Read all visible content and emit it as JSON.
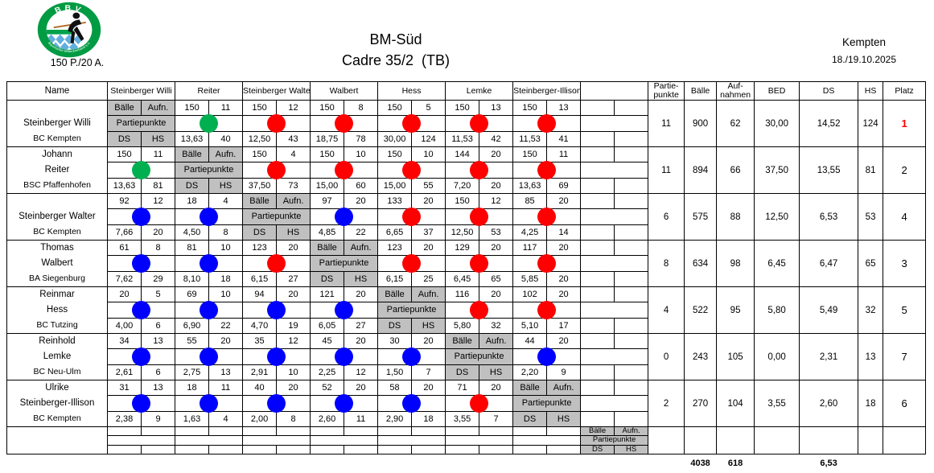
{
  "header": {
    "logo_text_top": "BBV",
    "logo_text_bottom": "Bayerischer Billardverband e.V.",
    "match_format": "150 P./20 A.",
    "title": "BM-Süd",
    "subtitle": "Cadre 35/2  (TB)",
    "location": "Kempten",
    "date": "18./19.10.2025"
  },
  "colors": {
    "dots": {
      "win": "#ff0000",
      "loss": "#0000ff",
      "draw": "#00b050"
    },
    "platz_first": "#ff0000",
    "diagonal_gray": "#c0c0c0",
    "logo_green": "#009b42",
    "logo_blue": "#62aede"
  },
  "table": {
    "name_header": "Name",
    "opponent_headers": [
      "Steinberger Willi",
      "Reiter",
      "Steinberger Walter",
      "Walbert",
      "Hess",
      "Lemke",
      "Steinberger-Illison",
      ""
    ],
    "summary_headers": [
      "Partie-\npunkte",
      "Bälle",
      "Auf-\nnahmen",
      "BED",
      "DS",
      "HS",
      "Platz"
    ],
    "diagonal_labels": {
      "balls": "Bälle",
      "innings": "Aufn.",
      "match_points": "Partiepunkte",
      "ds": "DS",
      "hs": "HS"
    },
    "players": [
      {
        "name_lines": [
          "",
          "Steinberger Willi",
          "BC Kempten"
        ],
        "diagonal": 0,
        "results": [
          null,
          {
            "balls": "150",
            "innings": "11",
            "result": "draw",
            "ds": "13,63",
            "hs": "40"
          },
          {
            "balls": "150",
            "innings": "12",
            "result": "win",
            "ds": "12,50",
            "hs": "43"
          },
          {
            "balls": "150",
            "innings": "8",
            "result": "win",
            "ds": "18,75",
            "hs": "78"
          },
          {
            "balls": "150",
            "innings": "5",
            "result": "win",
            "ds": "30,00",
            "hs": "124"
          },
          {
            "balls": "150",
            "innings": "13",
            "result": "win",
            "ds": "11,53",
            "hs": "42"
          },
          {
            "balls": "150",
            "innings": "13",
            "result": "win",
            "ds": "11,53",
            "hs": "41"
          },
          null
        ],
        "summary": {
          "partiepunkte": "11",
          "baelle": "900",
          "aufnahmen": "62",
          "bed": "30,00",
          "ds": "14,52",
          "hs": "124",
          "platz": "1",
          "platz_red": true
        }
      },
      {
        "name_lines": [
          "Johann",
          "Reiter",
          "BSC Pfaffenhofen"
        ],
        "diagonal": 1,
        "results": [
          {
            "balls": "150",
            "innings": "11",
            "result": "draw",
            "ds": "13,63",
            "hs": "81"
          },
          null,
          {
            "balls": "150",
            "innings": "4",
            "result": "win",
            "ds": "37,50",
            "hs": "73"
          },
          {
            "balls": "150",
            "innings": "10",
            "result": "win",
            "ds": "15,00",
            "hs": "60"
          },
          {
            "balls": "150",
            "innings": "10",
            "result": "win",
            "ds": "15,00",
            "hs": "55"
          },
          {
            "balls": "144",
            "innings": "20",
            "result": "win",
            "ds": "7,20",
            "hs": "20"
          },
          {
            "balls": "150",
            "innings": "11",
            "result": "win",
            "ds": "13,63",
            "hs": "69"
          },
          null
        ],
        "summary": {
          "partiepunkte": "11",
          "baelle": "894",
          "aufnahmen": "66",
          "bed": "37,50",
          "ds": "13,55",
          "hs": "81",
          "platz": "2",
          "platz_red": false
        }
      },
      {
        "name_lines": [
          "",
          "Steinberger Walter",
          "BC Kempten"
        ],
        "diagonal": 2,
        "results": [
          {
            "balls": "92",
            "innings": "12",
            "result": "loss",
            "ds": "7,66",
            "hs": "20"
          },
          {
            "balls": "18",
            "innings": "4",
            "result": "loss",
            "ds": "4,50",
            "hs": "8"
          },
          null,
          {
            "balls": "97",
            "innings": "20",
            "result": "loss",
            "ds": "4,85",
            "hs": "22"
          },
          {
            "balls": "133",
            "innings": "20",
            "result": "win",
            "ds": "6,65",
            "hs": "37"
          },
          {
            "balls": "150",
            "innings": "12",
            "result": "win",
            "ds": "12,50",
            "hs": "53"
          },
          {
            "balls": "85",
            "innings": "20",
            "result": "win",
            "ds": "4,25",
            "hs": "14"
          },
          null
        ],
        "summary": {
          "partiepunkte": "6",
          "baelle": "575",
          "aufnahmen": "88",
          "bed": "12,50",
          "ds": "6,53",
          "hs": "53",
          "platz": "4",
          "platz_red": false
        }
      },
      {
        "name_lines": [
          "Thomas",
          "Walbert",
          "BA Siegenburg"
        ],
        "diagonal": 3,
        "results": [
          {
            "balls": "61",
            "innings": "8",
            "result": "loss",
            "ds": "7,62",
            "hs": "29"
          },
          {
            "balls": "81",
            "innings": "10",
            "result": "loss",
            "ds": "8,10",
            "hs": "18"
          },
          {
            "balls": "123",
            "innings": "20",
            "result": "win",
            "ds": "6,15",
            "hs": "27"
          },
          null,
          {
            "balls": "123",
            "innings": "20",
            "result": "win",
            "ds": "6,15",
            "hs": "25"
          },
          {
            "balls": "129",
            "innings": "20",
            "result": "win",
            "ds": "6,45",
            "hs": "65"
          },
          {
            "balls": "117",
            "innings": "20",
            "result": "win",
            "ds": "5,85",
            "hs": "20"
          },
          null
        ],
        "summary": {
          "partiepunkte": "8",
          "baelle": "634",
          "aufnahmen": "98",
          "bed": "6,45",
          "ds": "6,47",
          "hs": "65",
          "platz": "3",
          "platz_red": false
        }
      },
      {
        "name_lines": [
          "Reinmar",
          "Hess",
          "BC Tutzing"
        ],
        "diagonal": 4,
        "results": [
          {
            "balls": "20",
            "innings": "5",
            "result": "loss",
            "ds": "4,00",
            "hs": "6"
          },
          {
            "balls": "69",
            "innings": "10",
            "result": "loss",
            "ds": "6,90",
            "hs": "22"
          },
          {
            "balls": "94",
            "innings": "20",
            "result": "loss",
            "ds": "4,70",
            "hs": "19"
          },
          {
            "balls": "121",
            "innings": "20",
            "result": "loss",
            "ds": "6,05",
            "hs": "27"
          },
          null,
          {
            "balls": "116",
            "innings": "20",
            "result": "win",
            "ds": "5,80",
            "hs": "32"
          },
          {
            "balls": "102",
            "innings": "20",
            "result": "win",
            "ds": "5,10",
            "hs": "17"
          },
          null
        ],
        "summary": {
          "partiepunkte": "4",
          "baelle": "522",
          "aufnahmen": "95",
          "bed": "5,80",
          "ds": "5,49",
          "hs": "32",
          "platz": "5",
          "platz_red": false
        }
      },
      {
        "name_lines": [
          "Reinhold",
          "Lemke",
          "BC Neu-Ulm"
        ],
        "diagonal": 5,
        "results": [
          {
            "balls": "34",
            "innings": "13",
            "result": "loss",
            "ds": "2,61",
            "hs": "6"
          },
          {
            "balls": "55",
            "innings": "20",
            "result": "loss",
            "ds": "2,75",
            "hs": "13"
          },
          {
            "balls": "35",
            "innings": "12",
            "result": "loss",
            "ds": "2,91",
            "hs": "10"
          },
          {
            "balls": "45",
            "innings": "20",
            "result": "loss",
            "ds": "2,25",
            "hs": "12"
          },
          {
            "balls": "30",
            "innings": "20",
            "result": "loss",
            "ds": "1,50",
            "hs": "7"
          },
          null,
          {
            "balls": "44",
            "innings": "20",
            "result": "loss",
            "ds": "2,20",
            "hs": "9"
          },
          null
        ],
        "summary": {
          "partiepunkte": "0",
          "baelle": "243",
          "aufnahmen": "105",
          "bed": "0,00",
          "ds": "2,31",
          "hs": "13",
          "platz": "7",
          "platz_red": false
        }
      },
      {
        "name_lines": [
          "Ulrike",
          "Steinberger-Illison",
          "BC Kempten"
        ],
        "diagonal": 6,
        "results": [
          {
            "balls": "31",
            "innings": "13",
            "result": "loss",
            "ds": "2,38",
            "hs": "9"
          },
          {
            "balls": "18",
            "innings": "11",
            "result": "loss",
            "ds": "1,63",
            "hs": "4"
          },
          {
            "balls": "40",
            "innings": "20",
            "result": "loss",
            "ds": "2,00",
            "hs": "8"
          },
          {
            "balls": "52",
            "innings": "20",
            "result": "loss",
            "ds": "2,60",
            "hs": "11"
          },
          {
            "balls": "58",
            "innings": "20",
            "result": "loss",
            "ds": "2,90",
            "hs": "18"
          },
          {
            "balls": "71",
            "innings": "20",
            "result": "win",
            "ds": "3,55",
            "hs": "7"
          },
          null,
          null
        ],
        "summary": {
          "partiepunkte": "2",
          "baelle": "270",
          "aufnahmen": "104",
          "bed": "3,55",
          "ds": "2,60",
          "hs": "18",
          "platz": "6",
          "platz_red": false
        }
      },
      {
        "name_lines": [
          "",
          "",
          ""
        ],
        "diagonal": 7,
        "results": [
          null,
          null,
          null,
          null,
          null,
          null,
          null,
          null
        ],
        "summary": {
          "partiepunkte": "",
          "baelle": "",
          "aufnahmen": "",
          "bed": "",
          "ds": "",
          "hs": "",
          "platz": "",
          "platz_red": false
        }
      }
    ],
    "totals": {
      "baelle": "4038",
      "aufnahmen": "618",
      "ds": "6,53"
    }
  }
}
